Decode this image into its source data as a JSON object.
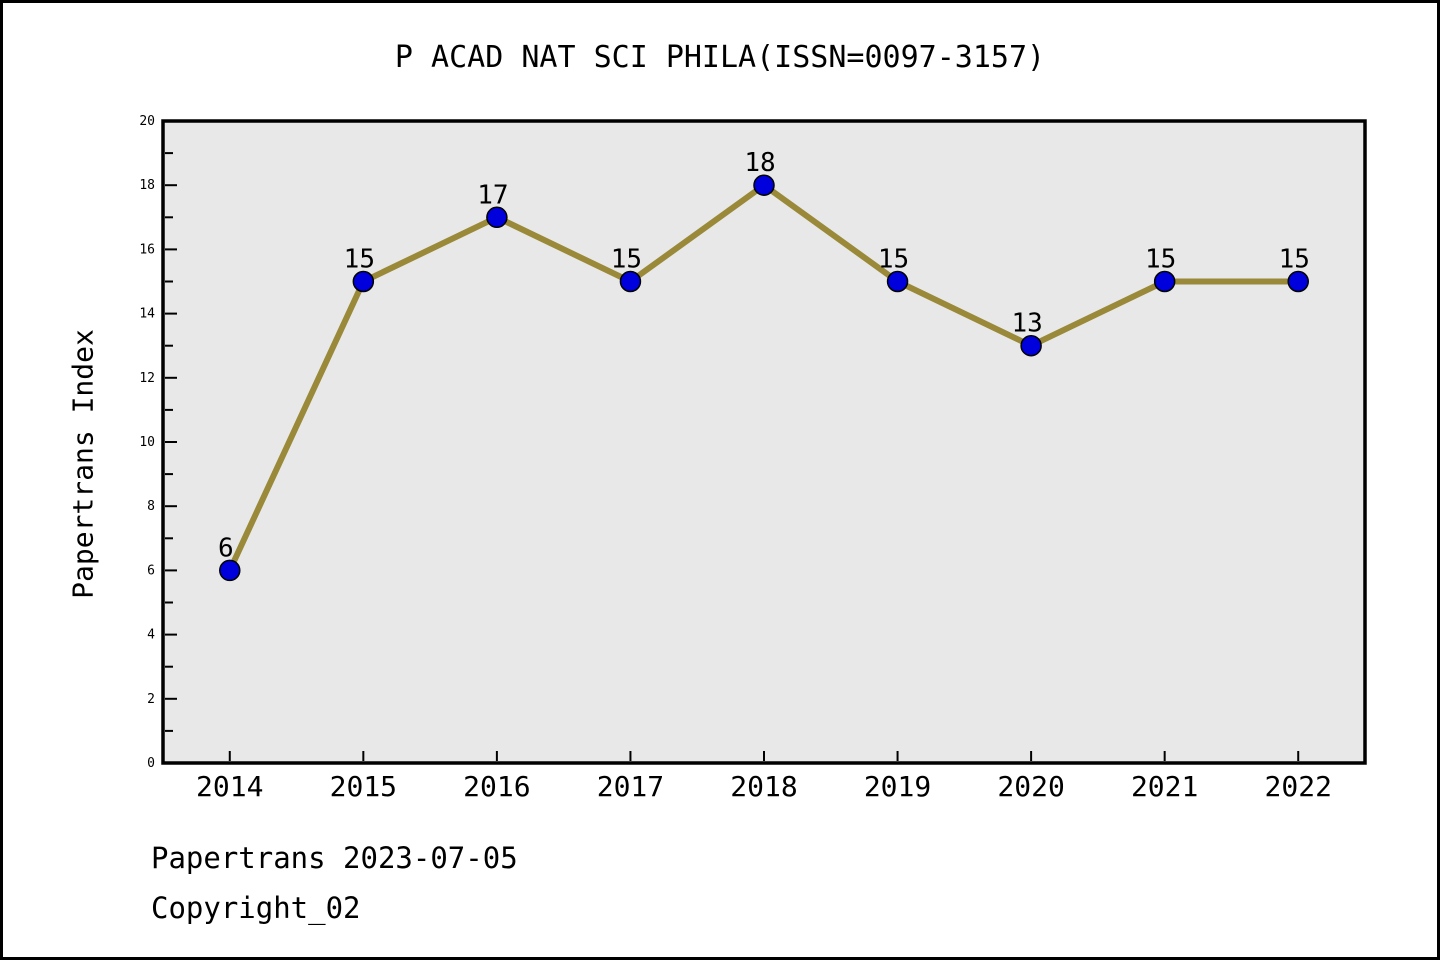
{
  "title": "P ACAD NAT SCI PHILA(ISSN=0097-3157)",
  "footer": {
    "line1": "Papertrans 2023-07-05",
    "line2": "Copyright_02"
  },
  "chart_data": {
    "type": "line",
    "title": "P ACAD NAT SCI PHILA(ISSN=0097-3157)",
    "xlabel": "",
    "ylabel": "Papertrans Index",
    "categories": [
      "2014",
      "2015",
      "2016",
      "2017",
      "2018",
      "2019",
      "2020",
      "2021",
      "2022"
    ],
    "values": [
      6,
      15,
      17,
      15,
      18,
      15,
      13,
      15,
      15
    ],
    "ylim": [
      0,
      20
    ],
    "y_major_step": 2,
    "y_minor_step": 1,
    "grid": false,
    "legend": null,
    "colors": {
      "line": "#998938",
      "marker_fill": "#0000DD",
      "marker_edge": "#000000",
      "plot_background": "#E8E8E8",
      "axis": "#000000",
      "text": "#000000"
    }
  }
}
